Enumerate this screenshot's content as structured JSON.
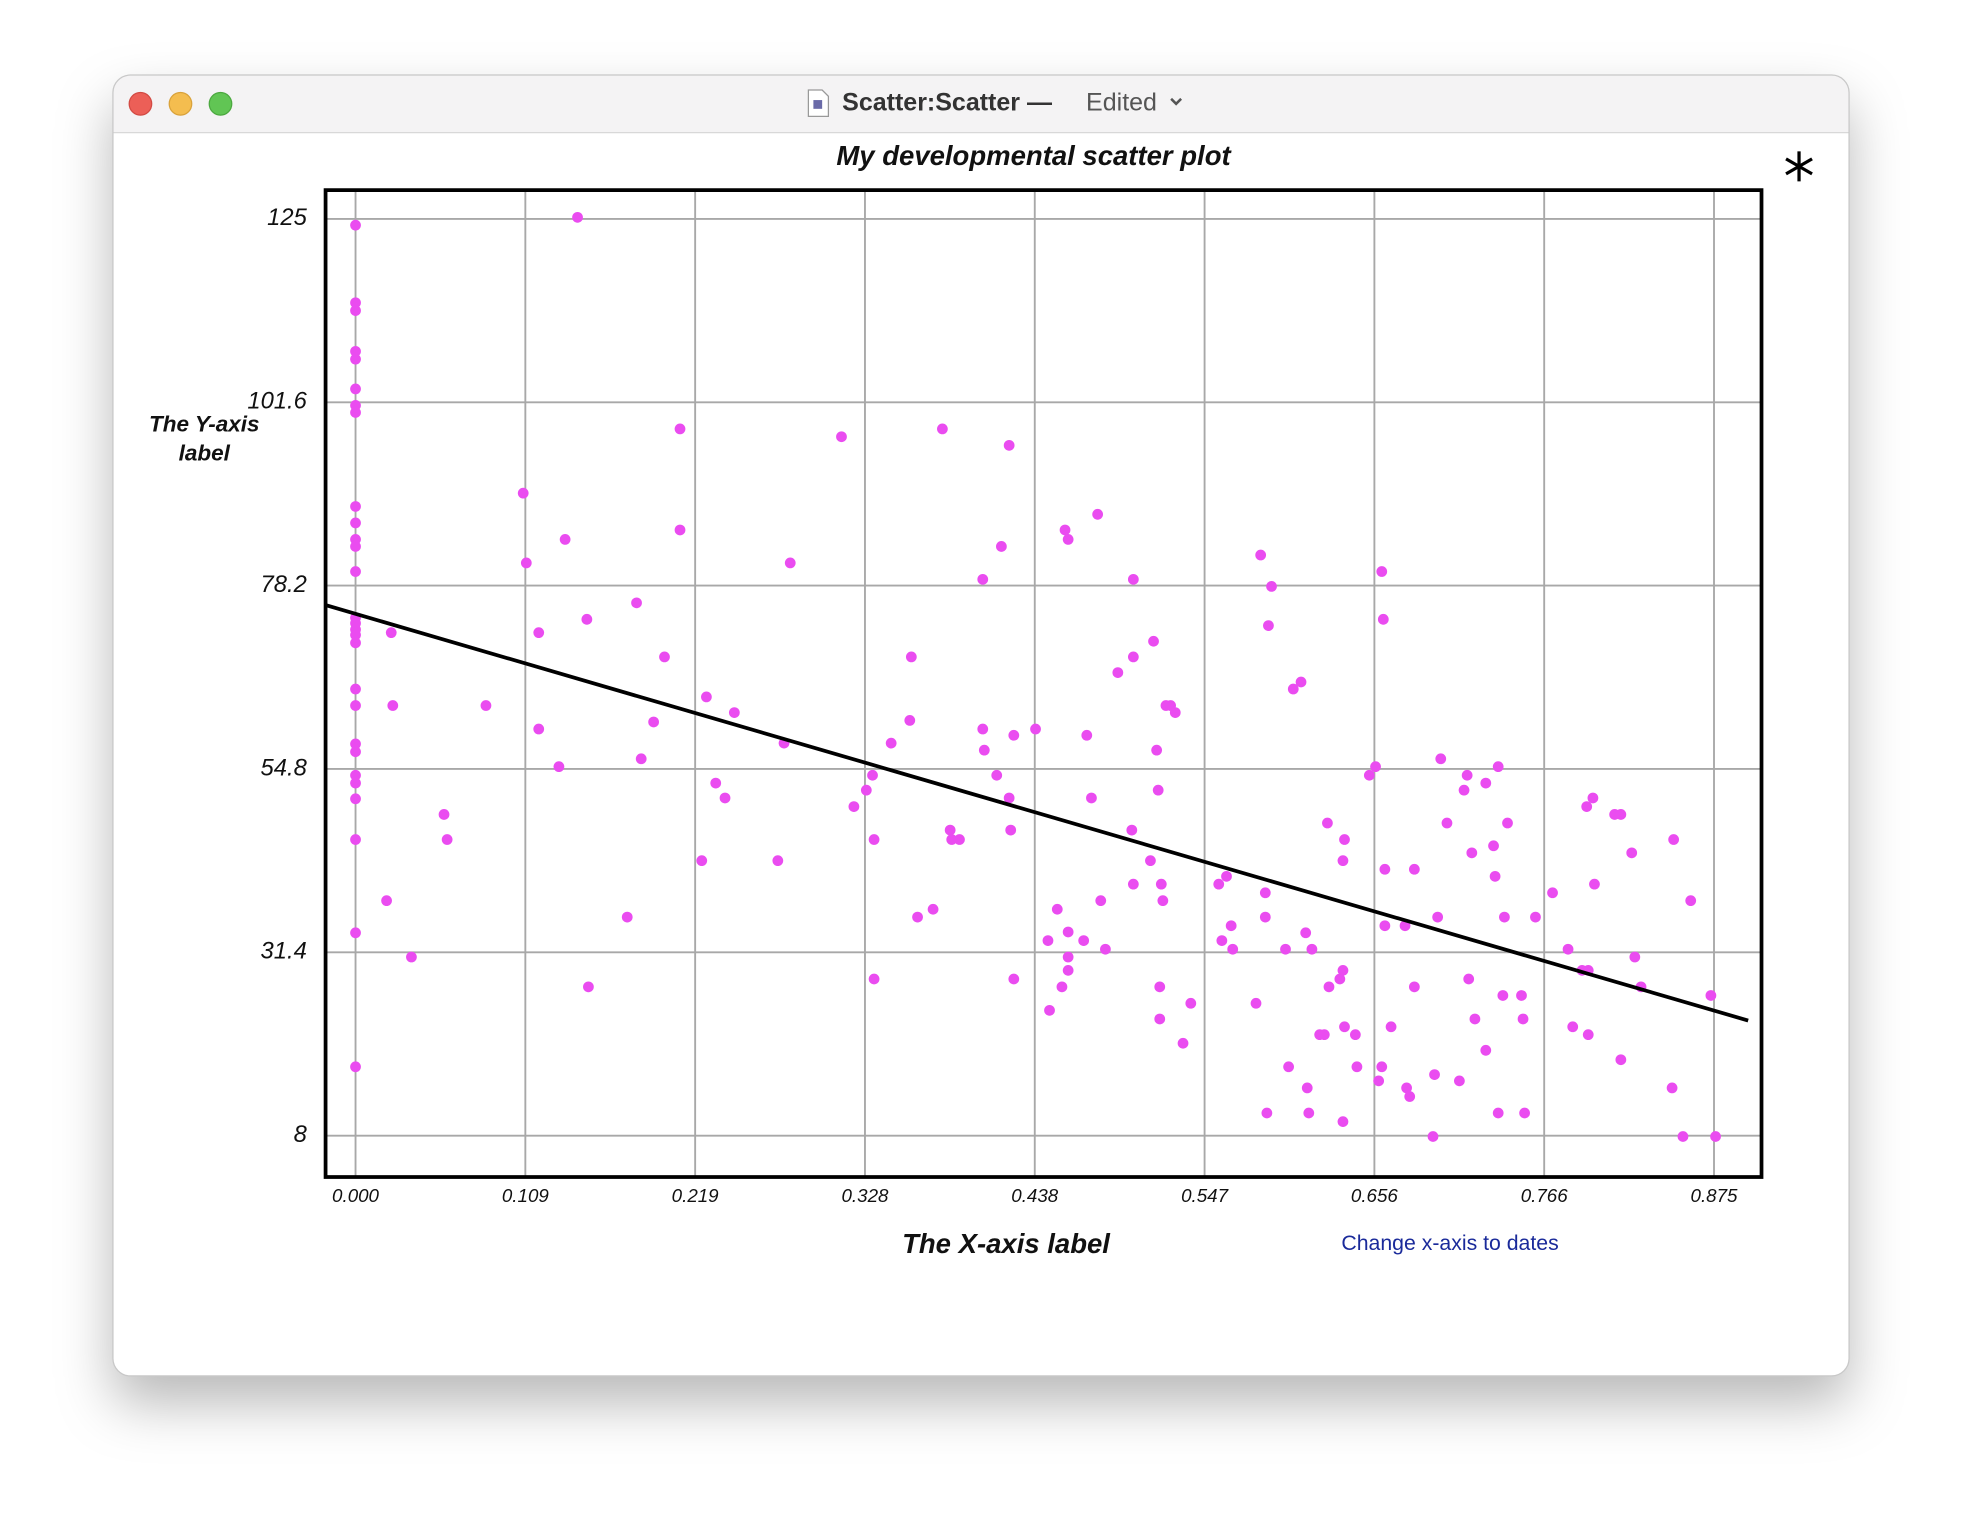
{
  "window": {
    "title": "Scatter:Scatter —",
    "status": "Edited"
  },
  "link": "Change x-axis to dates",
  "chart_data": {
    "type": "scatter",
    "title": "My developmental scatter plot",
    "xlabel": "The X-axis label",
    "ylabel": "The Y-axis label",
    "color": "#ea4cf0",
    "grid": true,
    "xlim": [
      -0.0193,
      0.9056
    ],
    "ylim": [
      2.73,
      128.67
    ],
    "xticks": [
      {
        "value": 0,
        "label": "0.000"
      },
      {
        "value": 0.109375,
        "label": "0.109"
      },
      {
        "value": 0.21875,
        "label": "0.219"
      },
      {
        "value": 0.328125,
        "label": "0.328"
      },
      {
        "value": 0.4375,
        "label": "0.438"
      },
      {
        "value": 0.546875,
        "label": "0.547"
      },
      {
        "value": 0.65625,
        "label": "0.656"
      },
      {
        "value": 0.765625,
        "label": "0.766"
      },
      {
        "value": 0.875,
        "label": "0.875"
      }
    ],
    "yticks": [
      8,
      31.4,
      54.8,
      78.2,
      101.6,
      125
    ],
    "trendline": {
      "x": [
        -0.019,
        0.897
      ],
      "y": [
        75.7,
        22.7
      ]
    },
    "x": [
      0,
      0,
      0,
      0,
      0,
      0,
      0,
      0,
      0,
      0,
      0,
      0,
      0,
      0,
      0,
      0,
      0,
      0,
      0,
      0,
      0,
      0,
      0,
      0,
      0,
      0,
      0,
      0,
      0.023,
      0.024,
      0.02,
      0.036,
      0.057,
      0.059,
      0.084,
      0.108,
      0.11,
      0.118,
      0.118,
      0.131,
      0.135,
      0.143,
      0.149,
      0.15,
      0.175,
      0.181,
      0.184,
      0.192,
      0.199,
      0.209,
      0.209,
      0.223,
      0.226,
      0.232,
      0.238,
      0.244,
      0.272,
      0.276,
      0.28,
      0.313,
      0.321,
      0.329,
      0.333,
      0.334,
      0.334,
      0.345,
      0.357,
      0.358,
      0.362,
      0.372,
      0.378,
      0.383,
      0.384,
      0.389,
      0.404,
      0.404,
      0.405,
      0.413,
      0.416,
      0.421,
      0.421,
      0.422,
      0.424,
      0.424,
      0.438,
      0.446,
      0.447,
      0.452,
      0.455,
      0.457,
      0.459,
      0.459,
      0.459,
      0.459,
      0.469,
      0.471,
      0.474,
      0.478,
      0.48,
      0.483,
      0.491,
      0.5,
      0.501,
      0.501,
      0.501,
      0.512,
      0.514,
      0.516,
      0.517,
      0.518,
      0.518,
      0.519,
      0.52,
      0.522,
      0.525,
      0.528,
      0.533,
      0.538,
      0.556,
      0.558,
      0.561,
      0.564,
      0.565,
      0.58,
      0.583,
      0.586,
      0.586,
      0.587,
      0.588,
      0.59,
      0.599,
      0.601,
      0.604,
      0.609,
      0.612,
      0.613,
      0.614,
      0.616,
      0.621,
      0.624,
      0.626,
      0.627,
      0.634,
      0.636,
      0.636,
      0.636,
      0.637,
      0.637,
      0.644,
      0.645,
      0.653,
      0.657,
      0.659,
      0.661,
      0.661,
      0.662,
      0.663,
      0.663,
      0.667,
      0.676,
      0.677,
      0.679,
      0.682,
      0.682,
      0.694,
      0.695,
      0.697,
      0.699,
      0.703,
      0.711,
      0.714,
      0.716,
      0.717,
      0.719,
      0.721,
      0.728,
      0.728,
      0.733,
      0.734,
      0.736,
      0.736,
      0.739,
      0.74,
      0.742,
      0.751,
      0.752,
      0.753,
      0.76,
      0.771,
      0.781,
      0.784,
      0.79,
      0.793,
      0.794,
      0.794,
      0.797,
      0.798,
      0.811,
      0.815,
      0.815,
      0.822,
      0.824,
      0.828,
      0.848,
      0.849,
      0.855,
      0.86,
      0.873,
      0.876
    ],
    "values": [
      124.2,
      114.3,
      113.3,
      108.1,
      107.1,
      103.3,
      101.2,
      100.3,
      88.3,
      86.2,
      84.1,
      83.2,
      80.0,
      74.1,
      73.4,
      72.6,
      71.9,
      70.9,
      65.0,
      62.9,
      58.0,
      57.0,
      54.0,
      53.0,
      51.0,
      45.8,
      33.9,
      16.8,
      72.2,
      62.9,
      38.0,
      30.8,
      49.0,
      45.8,
      62.9,
      90.0,
      81.1,
      72.2,
      59.9,
      55.1,
      84.1,
      125.2,
      73.9,
      27.0,
      35.9,
      76.0,
      56.1,
      60.8,
      69.1,
      98.2,
      85.3,
      43.1,
      64.0,
      53.0,
      51.1,
      62.0,
      43.1,
      58.1,
      81.1,
      97.2,
      50.0,
      52.1,
      54.0,
      45.8,
      28.0,
      58.1,
      61.0,
      69.1,
      35.9,
      36.9,
      98.2,
      47.0,
      45.8,
      45.8,
      79.0,
      59.9,
      57.2,
      54.0,
      83.2,
      96.1,
      51.1,
      47.0,
      59.1,
      28.0,
      59.9,
      32.9,
      24.0,
      36.9,
      27.0,
      85.3,
      84.1,
      34.0,
      30.8,
      29.1,
      32.9,
      59.1,
      51.1,
      87.3,
      38.0,
      31.8,
      67.1,
      47.0,
      79.0,
      69.1,
      40.1,
      43.1,
      71.1,
      57.2,
      52.1,
      27.0,
      22.9,
      40.1,
      38.0,
      62.9,
      62.9,
      62.0,
      19.8,
      24.9,
      40.1,
      32.9,
      41.1,
      34.8,
      31.8,
      24.9,
      82.1,
      39.0,
      35.9,
      10.9,
      73.1,
      78.1,
      31.8,
      16.8,
      65.0,
      65.9,
      33.9,
      14.1,
      10.9,
      31.8,
      20.9,
      20.9,
      47.9,
      27.0,
      28.0,
      29.1,
      9.8,
      43.1,
      21.9,
      45.8,
      20.9,
      16.8,
      54.0,
      55.1,
      15.0,
      80.0,
      16.8,
      73.9,
      42.0,
      34.8,
      21.9,
      34.8,
      14.1,
      13.0,
      42.0,
      27.0,
      7.9,
      15.8,
      35.9,
      56.1,
      47.9,
      15.0,
      52.1,
      54.0,
      28.0,
      44.1,
      22.9,
      53.0,
      18.9,
      45.0,
      41.1,
      55.1,
      10.9,
      25.9,
      35.9,
      47.9,
      25.9,
      22.9,
      10.9,
      35.9,
      39.0,
      31.8,
      21.9,
      29.1,
      50.0,
      20.9,
      29.1,
      51.1,
      40.1,
      49.0,
      49.0,
      17.7,
      44.1,
      30.8,
      27.0,
      14.1,
      45.8,
      7.9,
      38.0,
      25.9,
      7.9
    ]
  }
}
